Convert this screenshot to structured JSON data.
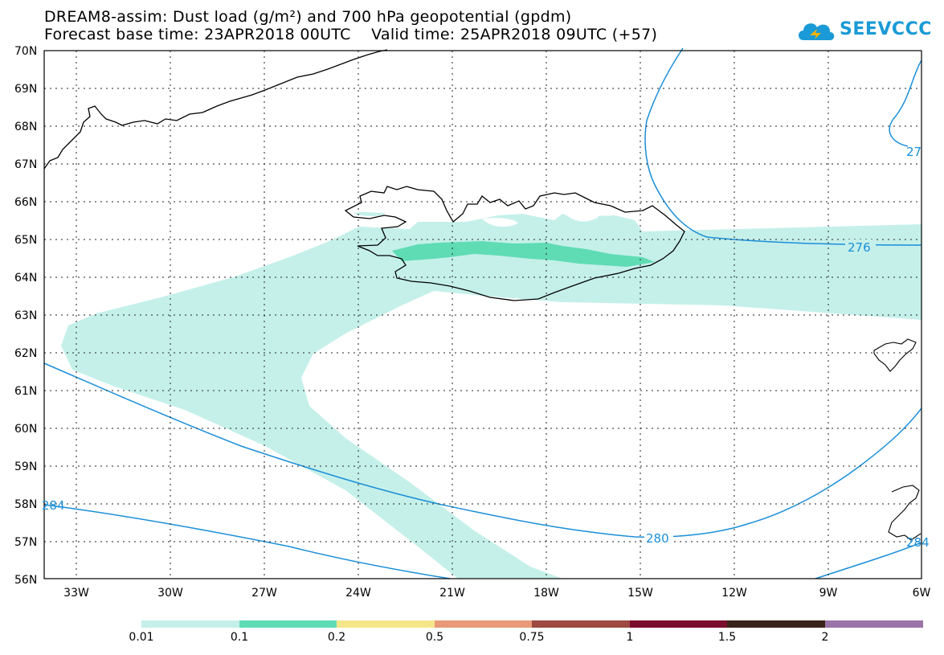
{
  "title": {
    "line1": "DREAM8-assim: Dust load (g/m²) and 700 hPa geopotential (gpdm)",
    "line2": "Forecast base time: 23APR2018 00UTC    Valid time: 25APR2018 09UTC (+57)"
  },
  "logo": {
    "text": "SEEVCCC",
    "icon": "cloud-logo-icon",
    "color": "#1a9ad6"
  },
  "map": {
    "lat_labels": [
      "70N",
      "69N",
      "68N",
      "67N",
      "66N",
      "65N",
      "64N",
      "63N",
      "62N",
      "61N",
      "60N",
      "59N",
      "58N",
      "57N",
      "56N"
    ],
    "lon_labels": [
      "33W",
      "30W",
      "27W",
      "24W",
      "21W",
      "18W",
      "15W",
      "12W",
      "9W",
      "6W"
    ],
    "contour_labels": [
      "276",
      "280",
      "284",
      "284",
      "27"
    ],
    "contour_color": "#1a8fd8",
    "coastline_color": "#000000"
  },
  "colorbar": {
    "labels": [
      "0.01",
      "0.1",
      "0.2",
      "0.5",
      "0.75",
      "1",
      "1.5",
      "2"
    ],
    "colors": [
      "#c5f0ea",
      "#5fdcb4",
      "#f5e68a",
      "#e89a78",
      "#9c4a42",
      "#7a0c2e",
      "#3a2418",
      "#9a74a8"
    ]
  }
}
